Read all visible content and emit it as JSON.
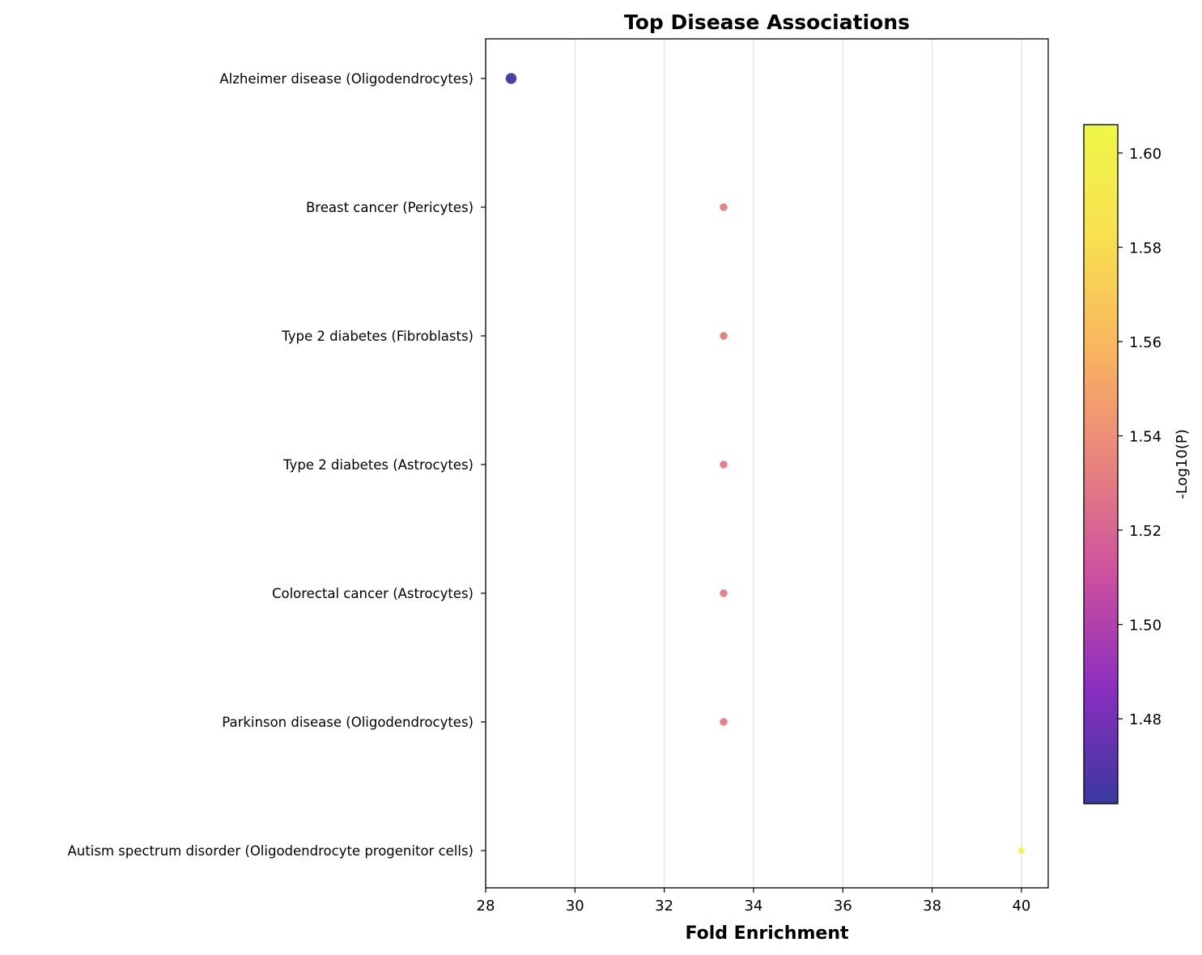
{
  "chart_data": {
    "type": "scatter",
    "title": "Top Disease Associations",
    "xlabel": "Fold Enrichment",
    "ylabel": "",
    "xlim": [
      28,
      40.6
    ],
    "xticks": [
      28,
      30,
      32,
      34,
      36,
      38,
      40
    ],
    "x_grid": true,
    "categories": [
      "Alzheimer disease (Oligodendrocytes)",
      "Breast cancer (Pericytes)",
      "Type 2 diabetes (Fibroblasts)",
      "Type 2 diabetes (Astrocytes)",
      "Colorectal cancer (Astrocytes)",
      "Parkinson disease (Oligodendrocytes)",
      "Autism spectrum disorder (Oligodendrocyte progenitor cells)"
    ],
    "points": [
      {
        "category": "Alzheimer disease (Oligodendrocytes)",
        "x": 28.57,
        "color_value": 1.462,
        "size": 1.4
      },
      {
        "category": "Breast cancer (Pericytes)",
        "x": 33.33,
        "color_value": 1.53,
        "size": 1.0
      },
      {
        "category": "Type 2 diabetes (Fibroblasts)",
        "x": 33.33,
        "color_value": 1.53,
        "size": 1.0
      },
      {
        "category": "Type 2 diabetes (Astrocytes)",
        "x": 33.33,
        "color_value": 1.53,
        "size": 1.0
      },
      {
        "category": "Colorectal cancer (Astrocytes)",
        "x": 33.33,
        "color_value": 1.53,
        "size": 1.0
      },
      {
        "category": "Parkinson disease (Oligodendrocytes)",
        "x": 33.33,
        "color_value": 1.53,
        "size": 1.0
      },
      {
        "category": "Autism spectrum disorder (Oligodendrocyte progenitor cells)",
        "x": 40.0,
        "color_value": 1.606,
        "size": 0.85
      }
    ],
    "colorbar": {
      "label": "-Log10(P)",
      "colormap": "plasma",
      "range": [
        1.462,
        1.606
      ],
      "ticks": [
        "1.48",
        "1.50",
        "1.52",
        "1.54",
        "1.56",
        "1.58",
        "1.60"
      ],
      "tick_values": [
        1.48,
        1.5,
        1.52,
        1.54,
        1.56,
        1.58,
        1.6
      ],
      "gradient_colors": [
        "#3a38a0",
        "#8a2ec0",
        "#cc4fa0",
        "#e8837e",
        "#f9b460",
        "#f8e050",
        "#eef748"
      ]
    }
  }
}
